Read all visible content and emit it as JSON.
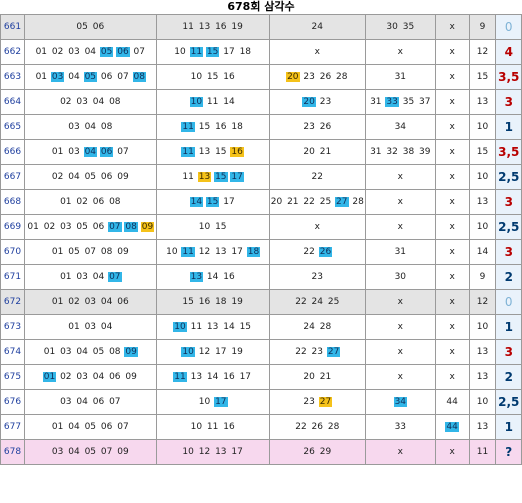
{
  "title": "678회 삼각수",
  "colors": {
    "blue_highlight": "#32b6e8",
    "yellow_highlight": "#f5c21a",
    "result_red": "#b80000",
    "result_blue": "#003a70"
  },
  "rows": [
    {
      "id": "661",
      "row_style": "gray",
      "cols": [
        [
          {
            "t": "05"
          },
          {
            "t": "06"
          }
        ],
        [
          {
            "t": "11"
          },
          {
            "t": "13"
          },
          {
            "t": "16"
          },
          {
            "t": "19"
          }
        ],
        [
          {
            "t": "24"
          }
        ],
        [
          {
            "t": "30"
          },
          {
            "t": "35"
          }
        ],
        [
          {
            "t": "x"
          }
        ],
        [
          {
            "t": "9"
          }
        ]
      ],
      "result": "0",
      "result_style": "pale"
    },
    {
      "id": "662",
      "row_style": "",
      "cols": [
        [
          {
            "t": "01"
          },
          {
            "t": "02"
          },
          {
            "t": "03"
          },
          {
            "t": "04"
          },
          {
            "t": "05",
            "h": "blue"
          },
          {
            "t": "06",
            "h": "blue"
          },
          {
            "t": "07"
          }
        ],
        [
          {
            "t": "10"
          },
          {
            "t": "11",
            "h": "blue"
          },
          {
            "t": "15",
            "h": "blue"
          },
          {
            "t": "17"
          },
          {
            "t": "18"
          }
        ],
        [
          {
            "t": "x"
          }
        ],
        [
          {
            "t": "x"
          }
        ],
        [
          {
            "t": "x"
          }
        ],
        [
          {
            "t": "12"
          }
        ]
      ],
      "result": "4",
      "result_style": "red"
    },
    {
      "id": "663",
      "row_style": "",
      "cols": [
        [
          {
            "t": "01"
          },
          {
            "t": "03",
            "h": "blue"
          },
          {
            "t": "04"
          },
          {
            "t": "05",
            "h": "blue"
          },
          {
            "t": "06"
          },
          {
            "t": "07"
          },
          {
            "t": "08",
            "h": "blue"
          }
        ],
        [
          {
            "t": "10"
          },
          {
            "t": "15"
          },
          {
            "t": "16"
          }
        ],
        [
          {
            "t": "20",
            "h": "yellow"
          },
          {
            "t": "23"
          },
          {
            "t": "26"
          },
          {
            "t": "28"
          }
        ],
        [
          {
            "t": "31"
          }
        ],
        [
          {
            "t": "x"
          }
        ],
        [
          {
            "t": "15"
          }
        ]
      ],
      "result": "3,5",
      "result_style": "red"
    },
    {
      "id": "664",
      "row_style": "",
      "cols": [
        [
          {
            "t": "02"
          },
          {
            "t": "03"
          },
          {
            "t": "04"
          },
          {
            "t": "08"
          }
        ],
        [
          {
            "t": "10",
            "h": "blue"
          },
          {
            "t": "11"
          },
          {
            "t": "14"
          }
        ],
        [
          {
            "t": "20",
            "h": "blue"
          },
          {
            "t": "23"
          }
        ],
        [
          {
            "t": "31"
          },
          {
            "t": "33",
            "h": "blue"
          },
          {
            "t": "35"
          },
          {
            "t": "37"
          }
        ],
        [
          {
            "t": "x"
          }
        ],
        [
          {
            "t": "13"
          }
        ]
      ],
      "result": "3",
      "result_style": "red"
    },
    {
      "id": "665",
      "row_style": "",
      "cols": [
        [
          {
            "t": "03"
          },
          {
            "t": "04"
          },
          {
            "t": "08"
          }
        ],
        [
          {
            "t": "11",
            "h": "blue"
          },
          {
            "t": "15"
          },
          {
            "t": "16"
          },
          {
            "t": "18"
          }
        ],
        [
          {
            "t": "23"
          },
          {
            "t": "26"
          }
        ],
        [
          {
            "t": "34"
          }
        ],
        [
          {
            "t": "x"
          }
        ],
        [
          {
            "t": "10"
          }
        ]
      ],
      "result": "1",
      "result_style": "blue"
    },
    {
      "id": "666",
      "row_style": "",
      "cols": [
        [
          {
            "t": "01"
          },
          {
            "t": "03"
          },
          {
            "t": "04",
            "h": "blue"
          },
          {
            "t": "06",
            "h": "blue"
          },
          {
            "t": "07"
          }
        ],
        [
          {
            "t": "11",
            "h": "blue"
          },
          {
            "t": "13"
          },
          {
            "t": "15"
          },
          {
            "t": "16",
            "h": "yellow"
          }
        ],
        [
          {
            "t": "20"
          },
          {
            "t": "21"
          }
        ],
        [
          {
            "t": "31"
          },
          {
            "t": "32"
          },
          {
            "t": "38"
          },
          {
            "t": "39"
          }
        ],
        [
          {
            "t": "x"
          }
        ],
        [
          {
            "t": "15"
          }
        ]
      ],
      "result": "3,5",
      "result_style": "red"
    },
    {
      "id": "667",
      "row_style": "",
      "cols": [
        [
          {
            "t": "02"
          },
          {
            "t": "04"
          },
          {
            "t": "05"
          },
          {
            "t": "06"
          },
          {
            "t": "09"
          }
        ],
        [
          {
            "t": "11"
          },
          {
            "t": "13",
            "h": "yellow"
          },
          {
            "t": "15",
            "h": "blue"
          },
          {
            "t": "17",
            "h": "blue"
          }
        ],
        [
          {
            "t": "22"
          }
        ],
        [
          {
            "t": "x"
          }
        ],
        [
          {
            "t": "x"
          }
        ],
        [
          {
            "t": "10"
          }
        ]
      ],
      "result": "2,5",
      "result_style": "blue"
    },
    {
      "id": "668",
      "row_style": "",
      "cols": [
        [
          {
            "t": "01"
          },
          {
            "t": "02"
          },
          {
            "t": "06"
          },
          {
            "t": "08"
          }
        ],
        [
          {
            "t": "14",
            "h": "blue"
          },
          {
            "t": "15",
            "h": "blue"
          },
          {
            "t": "17"
          }
        ],
        [
          {
            "t": "20"
          },
          {
            "t": "21"
          },
          {
            "t": "22"
          },
          {
            "t": "25"
          },
          {
            "t": "27",
            "h": "blue"
          },
          {
            "t": "28"
          }
        ],
        [
          {
            "t": "x"
          }
        ],
        [
          {
            "t": "x"
          }
        ],
        [
          {
            "t": "13"
          }
        ]
      ],
      "result": "3",
      "result_style": "red"
    },
    {
      "id": "669",
      "row_style": "",
      "cols": [
        [
          {
            "t": "01"
          },
          {
            "t": "02"
          },
          {
            "t": "03"
          },
          {
            "t": "05"
          },
          {
            "t": "06"
          },
          {
            "t": "07",
            "h": "blue"
          },
          {
            "t": "08",
            "h": "blue"
          },
          {
            "t": "09",
            "h": "yellow"
          }
        ],
        [
          {
            "t": "10"
          },
          {
            "t": "15"
          }
        ],
        [
          {
            "t": "x"
          }
        ],
        [
          {
            "t": "x"
          }
        ],
        [
          {
            "t": "x"
          }
        ],
        [
          {
            "t": "10"
          }
        ]
      ],
      "result": "2,5",
      "result_style": "blue"
    },
    {
      "id": "670",
      "row_style": "",
      "cols": [
        [
          {
            "t": "01"
          },
          {
            "t": "05"
          },
          {
            "t": "07"
          },
          {
            "t": "08"
          },
          {
            "t": "09"
          }
        ],
        [
          {
            "t": "10"
          },
          {
            "t": "11",
            "h": "blue"
          },
          {
            "t": "12"
          },
          {
            "t": "13"
          },
          {
            "t": "17"
          },
          {
            "t": "18",
            "h": "blue"
          }
        ],
        [
          {
            "t": "22"
          },
          {
            "t": "26",
            "h": "blue"
          }
        ],
        [
          {
            "t": "31"
          }
        ],
        [
          {
            "t": "x"
          }
        ],
        [
          {
            "t": "14"
          }
        ]
      ],
      "result": "3",
      "result_style": "red"
    },
    {
      "id": "671",
      "row_style": "",
      "cols": [
        [
          {
            "t": "01"
          },
          {
            "t": "03"
          },
          {
            "t": "04"
          },
          {
            "t": "07",
            "h": "blue"
          }
        ],
        [
          {
            "t": "13",
            "h": "blue"
          },
          {
            "t": "14"
          },
          {
            "t": "16"
          }
        ],
        [
          {
            "t": "23"
          }
        ],
        [
          {
            "t": "30"
          }
        ],
        [
          {
            "t": "x"
          }
        ],
        [
          {
            "t": "9"
          }
        ]
      ],
      "result": "2",
      "result_style": "blue"
    },
    {
      "id": "672",
      "row_style": "gray",
      "cols": [
        [
          {
            "t": "01"
          },
          {
            "t": "02"
          },
          {
            "t": "03"
          },
          {
            "t": "04"
          },
          {
            "t": "06"
          }
        ],
        [
          {
            "t": "15"
          },
          {
            "t": "16"
          },
          {
            "t": "18"
          },
          {
            "t": "19"
          }
        ],
        [
          {
            "t": "22"
          },
          {
            "t": "24"
          },
          {
            "t": "25"
          }
        ],
        [
          {
            "t": "x"
          }
        ],
        [
          {
            "t": "x"
          }
        ],
        [
          {
            "t": "12"
          }
        ]
      ],
      "result": "0",
      "result_style": "pale"
    },
    {
      "id": "673",
      "row_style": "",
      "cols": [
        [
          {
            "t": "01"
          },
          {
            "t": "03"
          },
          {
            "t": "04"
          }
        ],
        [
          {
            "t": "10",
            "h": "blue"
          },
          {
            "t": "11"
          },
          {
            "t": "13"
          },
          {
            "t": "14"
          },
          {
            "t": "15"
          }
        ],
        [
          {
            "t": "24"
          },
          {
            "t": "28"
          }
        ],
        [
          {
            "t": "x"
          }
        ],
        [
          {
            "t": "x"
          }
        ],
        [
          {
            "t": "10"
          }
        ]
      ],
      "result": "1",
      "result_style": "blue"
    },
    {
      "id": "674",
      "row_style": "",
      "cols": [
        [
          {
            "t": "01"
          },
          {
            "t": "03"
          },
          {
            "t": "04"
          },
          {
            "t": "05"
          },
          {
            "t": "08"
          },
          {
            "t": "09",
            "h": "blue"
          }
        ],
        [
          {
            "t": "10",
            "h": "blue"
          },
          {
            "t": "12"
          },
          {
            "t": "17"
          },
          {
            "t": "19"
          }
        ],
        [
          {
            "t": "22"
          },
          {
            "t": "23"
          },
          {
            "t": "27",
            "h": "blue"
          }
        ],
        [
          {
            "t": "x"
          }
        ],
        [
          {
            "t": "x"
          }
        ],
        [
          {
            "t": "13"
          }
        ]
      ],
      "result": "3",
      "result_style": "red"
    },
    {
      "id": "675",
      "row_style": "",
      "cols": [
        [
          {
            "t": "01",
            "h": "blue"
          },
          {
            "t": "02"
          },
          {
            "t": "03"
          },
          {
            "t": "04"
          },
          {
            "t": "06"
          },
          {
            "t": "09"
          }
        ],
        [
          {
            "t": "11",
            "h": "blue"
          },
          {
            "t": "13"
          },
          {
            "t": "14"
          },
          {
            "t": "16"
          },
          {
            "t": "17"
          }
        ],
        [
          {
            "t": "20"
          },
          {
            "t": "21"
          }
        ],
        [
          {
            "t": "x"
          }
        ],
        [
          {
            "t": "x"
          }
        ],
        [
          {
            "t": "13"
          }
        ]
      ],
      "result": "2",
      "result_style": "blue"
    },
    {
      "id": "676",
      "row_style": "",
      "cols": [
        [
          {
            "t": "03"
          },
          {
            "t": "04"
          },
          {
            "t": "06"
          },
          {
            "t": "07"
          }
        ],
        [
          {
            "t": "10"
          },
          {
            "t": "17",
            "h": "blue"
          }
        ],
        [
          {
            "t": "23"
          },
          {
            "t": "27",
            "h": "yellow"
          }
        ],
        [
          {
            "t": "34",
            "h": "blue"
          }
        ],
        [
          {
            "t": "44"
          }
        ],
        [
          {
            "t": "10"
          }
        ]
      ],
      "result": "2,5",
      "result_style": "blue"
    },
    {
      "id": "677",
      "row_style": "",
      "cols": [
        [
          {
            "t": "01"
          },
          {
            "t": "04"
          },
          {
            "t": "05"
          },
          {
            "t": "06"
          },
          {
            "t": "07"
          }
        ],
        [
          {
            "t": "10"
          },
          {
            "t": "11"
          },
          {
            "t": "16"
          }
        ],
        [
          {
            "t": "22"
          },
          {
            "t": "26"
          },
          {
            "t": "28"
          }
        ],
        [
          {
            "t": "33"
          }
        ],
        [
          {
            "t": "44",
            "h": "blue"
          }
        ],
        [
          {
            "t": "13"
          }
        ]
      ],
      "result": "1",
      "result_style": "blue"
    },
    {
      "id": "678",
      "row_style": "pink",
      "cols": [
        [
          {
            "t": "03"
          },
          {
            "t": "04"
          },
          {
            "t": "05"
          },
          {
            "t": "07"
          },
          {
            "t": "09"
          }
        ],
        [
          {
            "t": "10"
          },
          {
            "t": "12"
          },
          {
            "t": "13"
          },
          {
            "t": "17"
          }
        ],
        [
          {
            "t": "26"
          },
          {
            "t": "29"
          }
        ],
        [
          {
            "t": "x"
          }
        ],
        [
          {
            "t": "x"
          }
        ],
        [
          {
            "t": "11"
          }
        ]
      ],
      "result": "?",
      "result_style": "blue"
    }
  ]
}
